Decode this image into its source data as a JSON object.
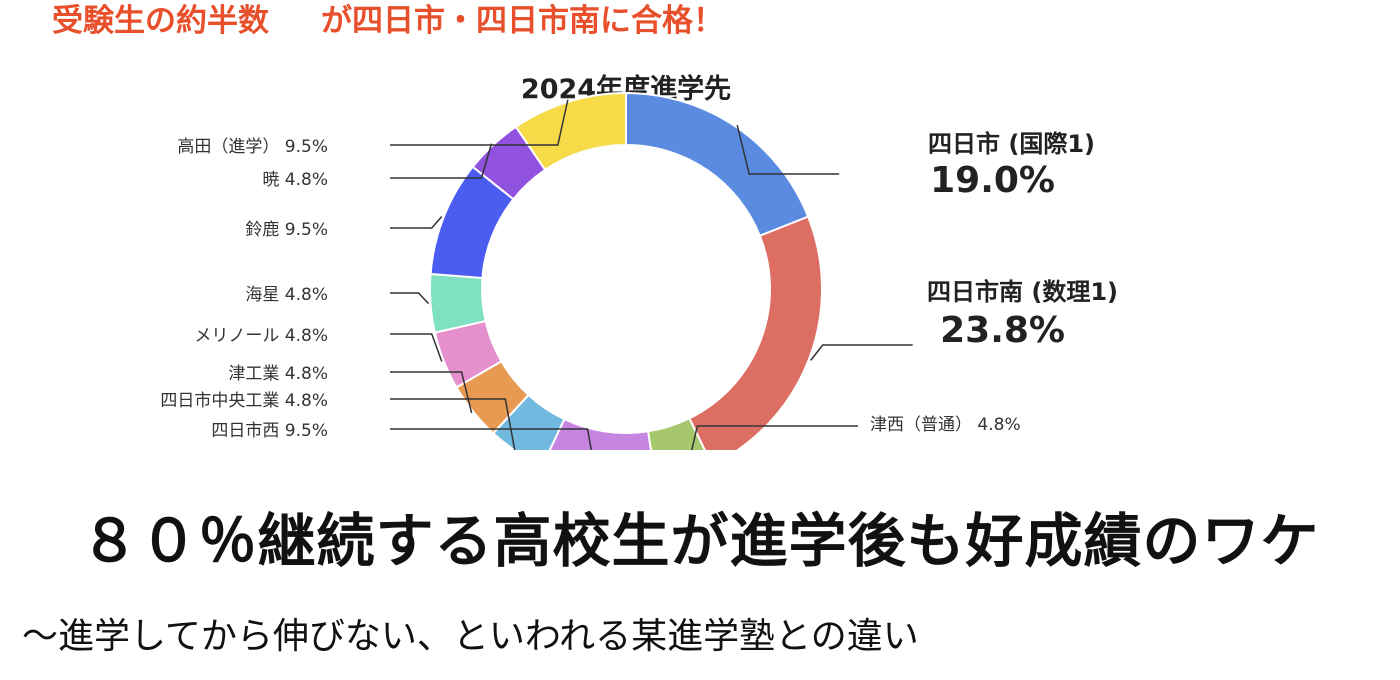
{
  "headline": {
    "part1": "受験生の約半数",
    "part2": "が四日市・四日市南に合格！"
  },
  "chart_data": {
    "type": "pie",
    "variant": "donut",
    "title": "2024年度進学先",
    "slices": [
      {
        "label": "四日市 (国際1)",
        "value": 19.0,
        "value_label": "19.0%",
        "color": "#5b8be0",
        "emphasis": true
      },
      {
        "label": "四日市南 (数理1)",
        "value": 23.8,
        "value_label": "23.8%",
        "color": "#dd6e64",
        "emphasis": true
      },
      {
        "label": "津西（普通）",
        "value": 4.8,
        "value_label": "4.8%",
        "color": "#a6c76b",
        "emphasis": false
      },
      {
        "label": "四日市西",
        "value": 9.5,
        "value_label": "9.5%",
        "color": "#c785e2",
        "emphasis": false
      },
      {
        "label": "四日市中央工業",
        "value": 4.8,
        "value_label": "4.8%",
        "color": "#72b9e0",
        "emphasis": false
      },
      {
        "label": "津工業",
        "value": 4.8,
        "value_label": "4.8%",
        "color": "#e99a52",
        "emphasis": false
      },
      {
        "label": "メリノール",
        "value": 4.8,
        "value_label": "4.8%",
        "color": "#e58fcd",
        "emphasis": false
      },
      {
        "label": "海星",
        "value": 4.8,
        "value_label": "4.8%",
        "color": "#7fe0c2",
        "emphasis": false
      },
      {
        "label": "鈴鹿",
        "value": 9.5,
        "value_label": "9.5%",
        "color": "#4b5cf0",
        "emphasis": false
      },
      {
        "label": "暁",
        "value": 4.8,
        "value_label": "4.8%",
        "color": "#9152e0",
        "emphasis": false
      },
      {
        "label": "高田（進学）",
        "value": 9.5,
        "value_label": "9.5%",
        "color": "#f7da48",
        "emphasis": false
      }
    ]
  },
  "main_title": "８０％継続する高校生が進学後も好成績のワケ",
  "subtitle": "〜進学してから伸びない、といわれる某進学塾との違い"
}
